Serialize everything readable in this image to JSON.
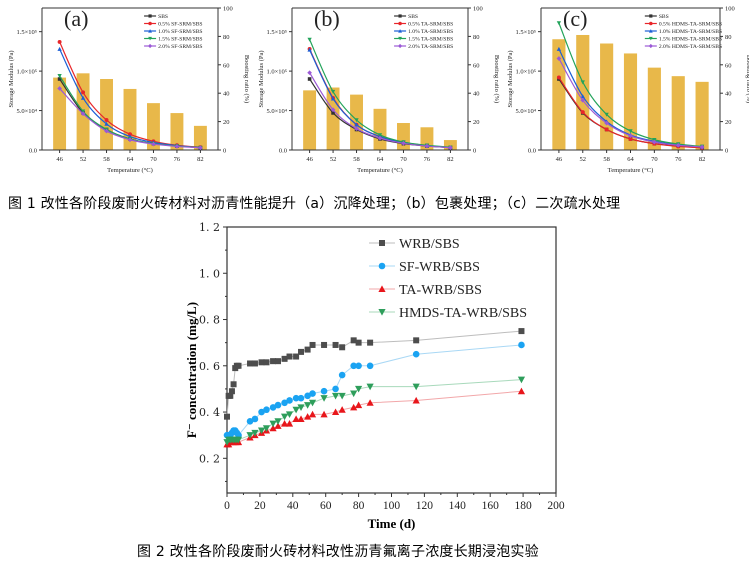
{
  "figure1": {
    "caption": "图 1 改性各阶段废耐火砖材料对沥青性能提升（a）沉降处理；（b）包裹处理；（c）二次疏水处理"
  },
  "figure2": {
    "caption": "图 2 改性各阶段废耐火砖材料改性沥青氟离子浓度长期浸泡实验"
  },
  "chart_data": [
    {
      "type": "bar+line",
      "panel_label": "(a)",
      "xlabel": "Temperature (°C)",
      "ylabel": "Storage Modulus (Pa)",
      "y2label": "Boosting ratio (%)",
      "categories": [
        "46",
        "52",
        "58",
        "64",
        "70",
        "76",
        "82"
      ],
      "ylim": [
        0,
        180000
      ],
      "yticks": [
        "0.0",
        "5.0×10⁴",
        "1.0×10⁵",
        "1.5×10⁵"
      ],
      "yticks_values": [
        0,
        50000,
        100000,
        150000
      ],
      "y2lim": [
        0,
        100
      ],
      "y2ticks": [
        "0",
        "20",
        "40",
        "60",
        "80",
        "100"
      ],
      "bars": {
        "name": "Boosting ratio",
        "color": "#E8B84A",
        "values": [
          51,
          54,
          50,
          43,
          33,
          26,
          17
        ]
      },
      "series": [
        {
          "name": "SBS",
          "color": "#333333",
          "marker": "square",
          "values": [
            90000,
            47000,
            26000,
            14000,
            8000,
            5000,
            3000
          ]
        },
        {
          "name": "0.5% SF-SRM/SBS",
          "color": "#E8262A",
          "marker": "circle",
          "values": [
            137000,
            73000,
            38000,
            20000,
            11000,
            6000,
            3500
          ]
        },
        {
          "name": "1.0% SF-SRM/SBS",
          "color": "#1C5FD6",
          "marker": "triangle-up",
          "values": [
            128000,
            66000,
            33000,
            17000,
            9500,
            5500,
            3200
          ]
        },
        {
          "name": "1.5% SF-SRM/SBS",
          "color": "#22A35A",
          "marker": "triangle-down",
          "values": [
            94000,
            49000,
            26000,
            14000,
            8000,
            5000,
            3000
          ]
        },
        {
          "name": "2.0% SF-SRM/SBS",
          "color": "#9B59D6",
          "marker": "diamond",
          "values": [
            78000,
            46000,
            24000,
            13000,
            7500,
            4500,
            2800
          ]
        }
      ]
    },
    {
      "type": "bar+line",
      "panel_label": "(b)",
      "xlabel": "Temperature (°C)",
      "ylabel": "Storage Modulus (Pa)",
      "y2label": "Boosting ratio (%)",
      "categories": [
        "46",
        "52",
        "58",
        "64",
        "70",
        "76",
        "82"
      ],
      "ylim": [
        0,
        180000
      ],
      "yticks": [
        "0.0",
        "5.0×10⁴",
        "1.0×10⁵",
        "1.5×10⁵"
      ],
      "yticks_values": [
        0,
        50000,
        100000,
        150000
      ],
      "y2lim": [
        0,
        100
      ],
      "y2ticks": [
        "0",
        "20",
        "40",
        "60",
        "80",
        "100"
      ],
      "bars": {
        "name": "Boosting ratio",
        "color": "#E8B84A",
        "values": [
          42,
          44,
          39,
          29,
          19,
          16,
          7
        ]
      },
      "series": [
        {
          "name": "SBS",
          "color": "#333333",
          "marker": "square",
          "values": [
            90000,
            47000,
            26000,
            14000,
            8000,
            5000,
            3000
          ]
        },
        {
          "name": "0.5% TA-SRM/SBS",
          "color": "#E8262A",
          "marker": "circle",
          "values": [
            128000,
            66000,
            32000,
            17000,
            9500,
            5500,
            3200
          ]
        },
        {
          "name": "1.0% TA-SRM/SBS",
          "color": "#1C5FD6",
          "marker": "triangle-up",
          "values": [
            127000,
            65000,
            32000,
            17000,
            9500,
            5500,
            3200
          ]
        },
        {
          "name": "1.5% TA-SRM/SBS",
          "color": "#22A35A",
          "marker": "triangle-down",
          "values": [
            140000,
            74000,
            38000,
            19000,
            10000,
            6000,
            3500
          ]
        },
        {
          "name": "2.0% TA-SRM/SBS",
          "color": "#9B59D6",
          "marker": "diamond",
          "values": [
            98000,
            51000,
            27000,
            15000,
            8500,
            5000,
            3000
          ]
        }
      ]
    },
    {
      "type": "bar+line",
      "panel_label": "(c)",
      "xlabel": "Temperature (°C)",
      "ylabel": "Storage Modulus (Pa)",
      "y2label": "Boosting ratio (%)",
      "categories": [
        "46",
        "52",
        "58",
        "64",
        "70",
        "76",
        "82"
      ],
      "ylim": [
        0,
        180000
      ],
      "yticks": [
        "0.0",
        "5.0×10⁴",
        "1.0×10⁵",
        "1.5×10⁵"
      ],
      "yticks_values": [
        0,
        50000,
        100000,
        150000
      ],
      "y2lim": [
        0,
        100
      ],
      "y2ticks": [
        "0",
        "20",
        "40",
        "60",
        "80",
        "100"
      ],
      "bars": {
        "name": "Boosting ratio",
        "color": "#E8B84A",
        "values": [
          78,
          81,
          75,
          68,
          58,
          52,
          48
        ]
      },
      "series": [
        {
          "name": "SBS",
          "color": "#333333",
          "marker": "square",
          "values": [
            90000,
            47000,
            26000,
            14000,
            8000,
            5000,
            3000
          ]
        },
        {
          "name": "0.5% HDMS-TA-SRM/SBS",
          "color": "#E8262A",
          "marker": "circle",
          "values": [
            92000,
            48000,
            26000,
            14000,
            8000,
            4500,
            2800
          ]
        },
        {
          "name": "1.0% HDMS-TA-SRM/SBS",
          "color": "#1C5FD6",
          "marker": "triangle-up",
          "values": [
            128000,
            68000,
            36000,
            19000,
            11000,
            6500,
            4000
          ]
        },
        {
          "name": "1.5% HDMS-TA-SRM/SBS",
          "color": "#22A35A",
          "marker": "triangle-down",
          "values": [
            161000,
            86000,
            45000,
            24000,
            13000,
            7500,
            4500
          ]
        },
        {
          "name": "2.0% HDMS-TA-SRM/SBS",
          "color": "#9B59D6",
          "marker": "diamond",
          "values": [
            116000,
            63000,
            34000,
            18000,
            10000,
            6000,
            3800
          ]
        }
      ]
    },
    {
      "type": "line",
      "title": "",
      "xlabel": "Time (d)",
      "ylabel": "F⁻ concentration (mg/L)",
      "xlim": [
        0,
        200
      ],
      "ylim": [
        0.05,
        1.2
      ],
      "xticks": [
        "0",
        "20",
        "40",
        "60",
        "80",
        "100",
        "120",
        "140",
        "160",
        "180",
        "200"
      ],
      "yticks": [
        "0.2",
        "0.4",
        "0.6",
        "0.8",
        "1.0",
        "1.2"
      ],
      "legend": "top-right",
      "series": [
        {
          "name": "WRB/SBS",
          "color": "#4D4D4D",
          "line_color": "#BDBDBD",
          "marker": "square",
          "x": [
            0,
            1,
            2,
            3,
            4,
            5,
            6,
            7,
            14,
            17,
            21,
            24,
            28,
            31,
            35,
            38,
            42,
            45,
            49,
            52,
            59,
            66,
            70,
            77,
            80,
            87,
            115,
            179
          ],
          "y": [
            0.38,
            0.47,
            0.47,
            0.49,
            0.52,
            0.59,
            0.6,
            0.6,
            0.61,
            0.61,
            0.615,
            0.615,
            0.62,
            0.62,
            0.63,
            0.64,
            0.64,
            0.66,
            0.67,
            0.69,
            0.69,
            0.69,
            0.68,
            0.71,
            0.7,
            0.7,
            0.71,
            0.75
          ]
        },
        {
          "name": "SF-WRB/SBS",
          "color": "#1AA3F2",
          "line_color": "#A9D8F5",
          "marker": "circle",
          "x": [
            0,
            1,
            2,
            3,
            4,
            5,
            6,
            7,
            14,
            17,
            21,
            24,
            28,
            31,
            35,
            38,
            42,
            45,
            49,
            52,
            59,
            66,
            70,
            77,
            80,
            87,
            115,
            179
          ],
          "y": [
            0.3,
            0.3,
            0.3,
            0.31,
            0.32,
            0.32,
            0.31,
            0.3,
            0.36,
            0.37,
            0.4,
            0.41,
            0.42,
            0.43,
            0.44,
            0.45,
            0.46,
            0.46,
            0.47,
            0.48,
            0.49,
            0.5,
            0.56,
            0.6,
            0.6,
            0.6,
            0.65,
            0.69
          ]
        },
        {
          "name": "TA-WRB/SBS",
          "color": "#E8161B",
          "line_color": "#F2A7A9",
          "marker": "triangle-up",
          "x": [
            0,
            1,
            2,
            3,
            4,
            5,
            6,
            7,
            14,
            17,
            21,
            24,
            28,
            31,
            35,
            38,
            42,
            45,
            49,
            52,
            59,
            66,
            70,
            77,
            80,
            87,
            115,
            179
          ],
          "y": [
            0.26,
            0.26,
            0.27,
            0.27,
            0.27,
            0.27,
            0.27,
            0.27,
            0.29,
            0.3,
            0.31,
            0.32,
            0.33,
            0.34,
            0.35,
            0.35,
            0.37,
            0.37,
            0.38,
            0.39,
            0.39,
            0.4,
            0.41,
            0.42,
            0.43,
            0.44,
            0.45,
            0.49
          ]
        },
        {
          "name": "HMDS-TA-WRB/SBS",
          "color": "#2E9E5B",
          "line_color": "#A8D9BB",
          "marker": "triangle-down",
          "x": [
            0,
            1,
            2,
            3,
            4,
            5,
            6,
            7,
            14,
            17,
            21,
            24,
            28,
            31,
            35,
            38,
            42,
            45,
            49,
            52,
            59,
            66,
            70,
            77,
            80,
            87,
            115,
            179
          ],
          "y": [
            0.27,
            0.28,
            0.28,
            0.28,
            0.28,
            0.28,
            0.28,
            0.28,
            0.3,
            0.31,
            0.32,
            0.33,
            0.35,
            0.36,
            0.38,
            0.39,
            0.41,
            0.42,
            0.43,
            0.44,
            0.46,
            0.47,
            0.47,
            0.48,
            0.5,
            0.51,
            0.51,
            0.54
          ]
        }
      ]
    }
  ]
}
